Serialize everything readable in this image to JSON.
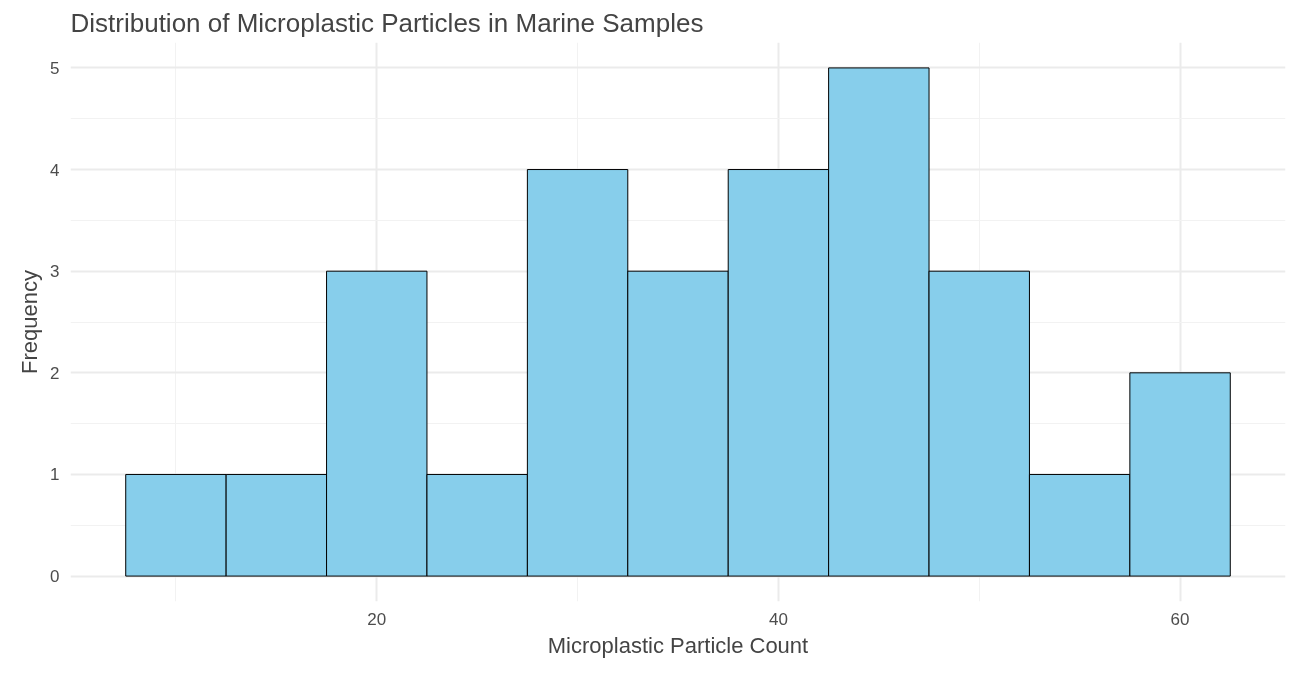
{
  "chart_data": {
    "type": "histogram",
    "title": "Distribution of Microplastic Particles in Marine Samples",
    "xlabel": "Microplastic Particle Count",
    "ylabel": "Frequency",
    "bins": [
      7.5,
      12.5,
      17.5,
      22.5,
      27.5,
      32.5,
      37.5,
      42.5,
      47.5,
      52.5,
      57.5,
      62.5
    ],
    "values": [
      1,
      1,
      3,
      1,
      4,
      3,
      4,
      5,
      3,
      1,
      2
    ],
    "color": "#87ceeb",
    "xlim": [
      4.75,
      65.25
    ],
    "ylim": [
      -0.25,
      5.25
    ],
    "xticks": [
      20,
      40,
      60
    ],
    "yticks": [
      0,
      1,
      2,
      3,
      4,
      5
    ],
    "grid": true
  }
}
